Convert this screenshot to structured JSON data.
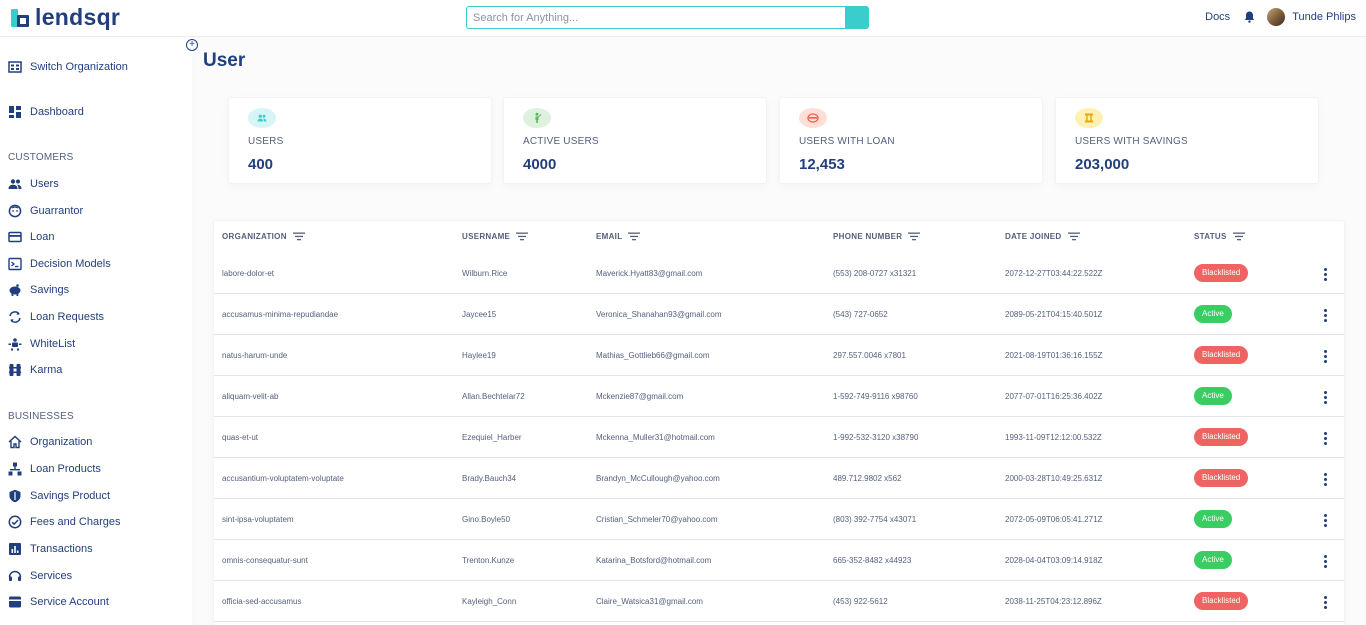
{
  "header": {
    "logo_text": "lendsqr",
    "search_placeholder": "Search for Anything...",
    "docs_label": "Docs",
    "user_name": "Tunde Phlips"
  },
  "sidebar": {
    "switch_org": "Switch Organization",
    "dashboard": "Dashboard",
    "customers_heading": "CUSTOMERS",
    "customers": [
      "Users",
      "Guarrantor",
      "Loan",
      "Decision Models",
      "Savings",
      "Loan Requests",
      "WhiteList",
      "Karma"
    ],
    "businesses_heading": "BUSINESSES",
    "businesses": [
      "Organization",
      "Loan Products",
      "Savings Product",
      "Fees and Charges",
      "Transactions",
      "Services",
      "Service Account"
    ]
  },
  "page": {
    "title": "User"
  },
  "cards": [
    {
      "label": "USERS",
      "value": "400",
      "color": "#39cdcc",
      "icon": "users-icon"
    },
    {
      "label": "ACTIVE USERS",
      "value": "4000",
      "color": "#5cb85c",
      "icon": "active-users-icon"
    },
    {
      "label": "USERS WITH LOAN",
      "value": "12,453",
      "color": "#f55f44",
      "icon": "loan-icon"
    },
    {
      "label": "USERS WITH SAVINGS",
      "value": "203,000",
      "color": "#ffd21e",
      "icon": "savings-icon"
    }
  ],
  "table": {
    "headers": [
      "ORGANIZATION",
      "USERNAME",
      "EMAIL",
      "PHONE NUMBER",
      "DATE JOINED",
      "STATUS"
    ],
    "rows": [
      {
        "organization": "labore-dolor-et",
        "username": "Wilburn.Rice",
        "email": "Maverick.Hyatt83@gmail.com",
        "phone": "(553) 208-0727 x31321",
        "date": "2072-12-27T03:44:22.522Z",
        "status": "Blacklisted"
      },
      {
        "organization": "accusamus-minima-repudiandae",
        "username": "Jaycee15",
        "email": "Veronica_Shanahan93@gmail.com",
        "phone": "(543) 727-0652",
        "date": "2089-05-21T04:15:40.501Z",
        "status": "Active"
      },
      {
        "organization": "natus-harum-unde",
        "username": "Haylee19",
        "email": "Mathias_Gottlieb66@gmail.com",
        "phone": "297.557.0046 x7801",
        "date": "2021-08-19T01:36:16.155Z",
        "status": "Blacklisted"
      },
      {
        "organization": "aliquam-velit-ab",
        "username": "Allan.Bechtelar72",
        "email": "Mckenzie87@gmail.com",
        "phone": "1-592-749-9116 x98760",
        "date": "2077-07-01T16:25:36.402Z",
        "status": "Active"
      },
      {
        "organization": "quas-et-ut",
        "username": "Ezequiel_Harber",
        "email": "Mckenna_Muller31@hotmail.com",
        "phone": "1-992-532-3120 x38790",
        "date": "1993-11-09T12:12:00.532Z",
        "status": "Blacklisted"
      },
      {
        "organization": "accusantium-voluptatem-voluptate",
        "username": "Brady.Bauch34",
        "email": "Brandyn_McCullough@yahoo.com",
        "phone": "489.712.9802 x562",
        "date": "2000-03-28T10:49:25.631Z",
        "status": "Blacklisted"
      },
      {
        "organization": "sint-ipsa-voluptatem",
        "username": "Gino.Boyle50",
        "email": "Cristian_Schmeler70@yahoo.com",
        "phone": "(803) 392-7754 x43071",
        "date": "2072-05-09T06:05:41.271Z",
        "status": "Active"
      },
      {
        "organization": "omnis-consequatur-sunt",
        "username": "Trenton.Kunze",
        "email": "Katarina_Botsford@hotmail.com",
        "phone": "665-352-8482 x44923",
        "date": "2028-04-04T03:09:14.918Z",
        "status": "Active"
      },
      {
        "organization": "officia-sed-accusamus",
        "username": "Kayleigh_Conn",
        "email": "Claire_Watsica31@gmail.com",
        "phone": "(453) 922-5612",
        "date": "2038-11-25T04:23:12.896Z",
        "status": "Blacklisted"
      }
    ]
  }
}
